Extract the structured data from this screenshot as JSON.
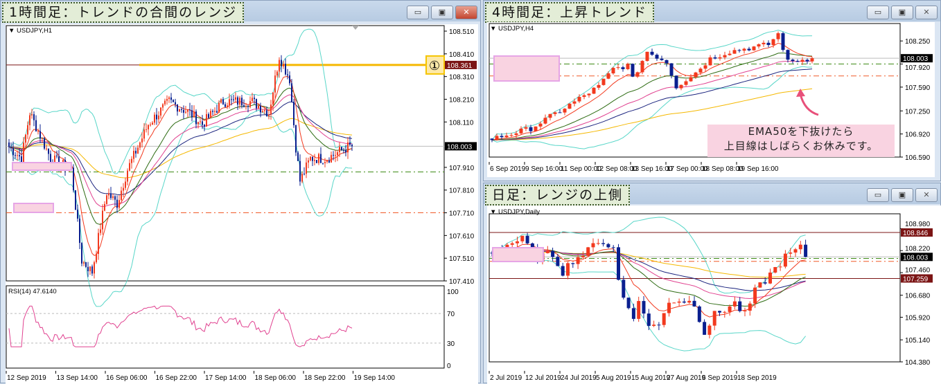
{
  "windows": [
    {
      "id": "h1",
      "title": "1時間足：トレンドの合間のレンジ",
      "symbol": "USDJPY,H1",
      "price_ticks": [
        "108.510",
        "108.410",
        "108.310",
        "108.210",
        "108.110",
        "107.910",
        "107.810",
        "107.710",
        "107.610",
        "107.510",
        "107.410"
      ],
      "date_ticks": [
        "12 Sep 2019",
        "13 Sep 14:00",
        "16 Sep 06:00",
        "16 Sep 22:00",
        "17 Sep 14:00",
        "18 Sep 06:00",
        "18 Sep 22:00",
        "19 Sep 14:00"
      ],
      "current_price": "108.003",
      "line_price": "108.361",
      "marker": "①",
      "rsi": {
        "label": "RSI(14) 47.6140",
        "ticks": [
          "100",
          "70",
          "30",
          "0"
        ]
      }
    },
    {
      "id": "h4",
      "title": "4時間足：上昇トレンド",
      "symbol": "USDJPY,H4",
      "price_ticks": [
        "108.250",
        "107.920",
        "107.590",
        "107.250",
        "106.920",
        "106.590"
      ],
      "date_ticks": [
        "6 Sep 2019",
        "9 Sep 16:00",
        "11 Sep 00:00",
        "12 Sep 08:00",
        "13 Sep 16:00",
        "17 Sep 00:00",
        "18 Sep 08:00",
        "19 Sep 16:00"
      ],
      "current_price": "108.003",
      "note": [
        "EMA50を下抜けたら",
        "上目線はしばらくお休みです。"
      ]
    },
    {
      "id": "d1",
      "title": "日足：レンジの上側",
      "symbol": "USDJPY,Daily",
      "price_ticks": [
        "108.980",
        "108.220",
        "107.460",
        "106.680",
        "105.920",
        "105.140",
        "104.380"
      ],
      "date_ticks": [
        "2 Jul 2019",
        "12 Jul 2019",
        "24 Jul 2019",
        "5 Aug 2019",
        "15 Aug 2019",
        "27 Aug 2019",
        "6 Sep 2019",
        "18 Sep 2019"
      ],
      "current_price": "108.003",
      "upper_line_price": "108.846",
      "lower_line_price": "107.259"
    }
  ],
  "window_buttons": {
    "minimize": "▭",
    "maximize": "▣",
    "close": "✕"
  },
  "colors": {
    "bull": "#f2391e",
    "bear": "#0a1f8f",
    "bollinger": "#57d6c8",
    "ema_fast": "#f2391e",
    "ema_2": "#2d6b12",
    "ema_3": "#e0408f",
    "ema_4": "#1a237e",
    "ema_slow": "#f5b800",
    "resistance": "#7b1414",
    "support_green": "#3c8a14",
    "support_orange": "#f05a28",
    "annotation_pink": "#f9d3e1",
    "rsi": "#e0408f"
  },
  "chart_data": [
    {
      "type": "candlestick",
      "timeframe": "H1",
      "ylim": [
        107.41,
        108.51
      ],
      "closes_key": [
        [
          0,
          108.0
        ],
        [
          6,
          107.95
        ],
        [
          10,
          108.15
        ],
        [
          20,
          107.95
        ],
        [
          30,
          107.9
        ],
        [
          35,
          107.5
        ],
        [
          40,
          107.45
        ],
        [
          47,
          107.8
        ],
        [
          52,
          107.75
        ],
        [
          57,
          107.9
        ],
        [
          67,
          108.1
        ],
        [
          77,
          108.2
        ],
        [
          87,
          108.15
        ],
        [
          93,
          108.1
        ],
        [
          103,
          108.2
        ],
        [
          117,
          108.2
        ],
        [
          125,
          108.15
        ],
        [
          130,
          108.4
        ],
        [
          135,
          108.3
        ],
        [
          138,
          108.0
        ],
        [
          140,
          107.85
        ],
        [
          145,
          107.95
        ],
        [
          153,
          107.95
        ],
        [
          163,
          108.0
        ],
        [
          165,
          108.003
        ]
      ],
      "horizontal_lines": [
        108.361,
        107.89,
        107.71
      ],
      "rsi_levels": [
        70,
        30
      ],
      "rsi_last": 47.614
    },
    {
      "type": "candlestick",
      "timeframe": "H4",
      "ylim": [
        106.59,
        108.42
      ],
      "closes_key": [
        [
          0,
          106.85
        ],
        [
          8,
          107.0
        ],
        [
          14,
          107.25
        ],
        [
          22,
          107.6
        ],
        [
          25,
          107.85
        ],
        [
          28,
          107.9
        ],
        [
          29,
          107.7
        ],
        [
          32,
          108.1
        ],
        [
          36,
          107.95
        ],
        [
          38,
          107.6
        ],
        [
          42,
          107.8
        ],
        [
          45,
          108.0
        ],
        [
          49,
          108.1
        ],
        [
          53,
          108.15
        ],
        [
          57,
          108.2
        ],
        [
          59,
          108.35
        ],
        [
          61,
          107.95
        ],
        [
          66,
          108.003
        ]
      ],
      "horizontal_lines": [
        107.92,
        107.75
      ]
    },
    {
      "type": "candlestick",
      "timeframe": "Daily",
      "ylim": [
        104.38,
        109.3
      ],
      "closes_key": [
        [
          0,
          108.2
        ],
        [
          4,
          108.5
        ],
        [
          6,
          108.6
        ],
        [
          9,
          108.0
        ],
        [
          12,
          108.1
        ],
        [
          14,
          107.5
        ],
        [
          16,
          107.9
        ],
        [
          19,
          108.2
        ],
        [
          21,
          108.6
        ],
        [
          24,
          108.3
        ],
        [
          25,
          107.2
        ],
        [
          26,
          106.6
        ],
        [
          28,
          106.0
        ],
        [
          29,
          106.4
        ],
        [
          31,
          105.7
        ],
        [
          33,
          105.6
        ],
        [
          35,
          106.5
        ],
        [
          38,
          106.5
        ],
        [
          40,
          106.4
        ],
        [
          42,
          105.4
        ],
        [
          44,
          106.0
        ],
        [
          46,
          106.2
        ],
        [
          48,
          106.4
        ],
        [
          50,
          106.0
        ],
        [
          52,
          106.8
        ],
        [
          54,
          107.2
        ],
        [
          56,
          107.6
        ],
        [
          58,
          108.0
        ],
        [
          61,
          108.3
        ],
        [
          62,
          108.003
        ]
      ],
      "horizontal_lines": [
        108.846,
        107.259,
        107.95,
        107.85
      ]
    }
  ]
}
